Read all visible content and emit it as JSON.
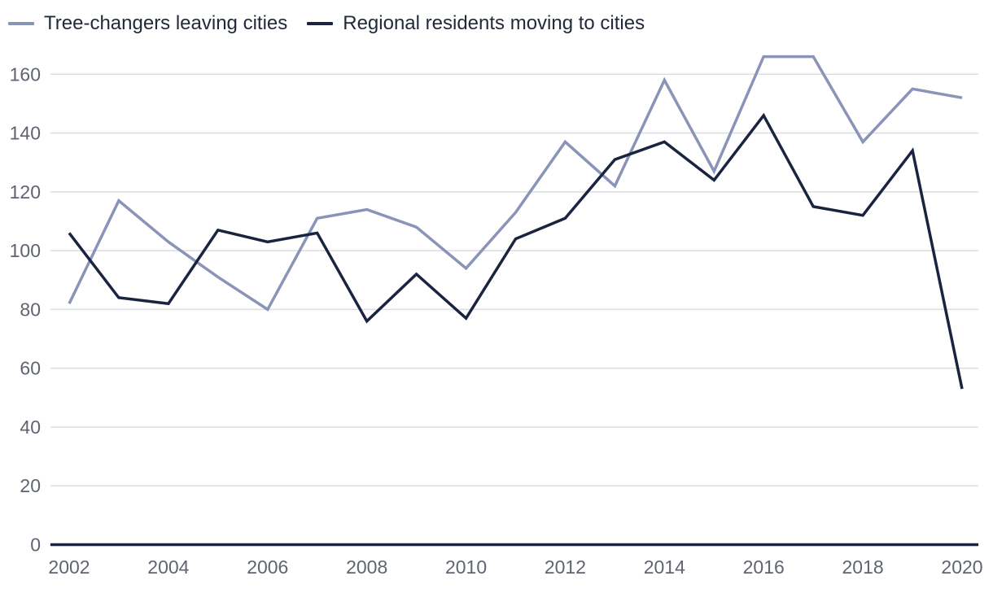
{
  "chart_data": {
    "type": "line",
    "title": "",
    "xlabel": "",
    "ylabel": "",
    "x": [
      2002,
      2003,
      2004,
      2005,
      2006,
      2007,
      2008,
      2009,
      2010,
      2011,
      2012,
      2013,
      2014,
      2015,
      2016,
      2017,
      2018,
      2019,
      2020
    ],
    "xticks": [
      "2002",
      "2004",
      "2006",
      "2008",
      "2010",
      "2012",
      "2014",
      "2016",
      "2018",
      "2020"
    ],
    "yticks": [
      "0",
      "20",
      "40",
      "60",
      "80",
      "100",
      "120",
      "140",
      "160"
    ],
    "ylim": [
      0,
      170
    ],
    "grid": true,
    "legend_position": "top-left",
    "series": [
      {
        "name": "Tree-changers leaving cities",
        "color": "#8a93b8",
        "values": [
          82,
          117,
          103,
          91,
          80,
          111,
          114,
          108,
          94,
          113,
          137,
          122,
          158,
          127,
          166,
          166,
          137,
          155,
          152
        ]
      },
      {
        "name": "Regional residents moving to cities",
        "color": "#1a2340",
        "values": [
          106,
          84,
          82,
          107,
          103,
          106,
          76,
          92,
          77,
          104,
          111,
          131,
          137,
          124,
          146,
          115,
          112,
          134,
          53
        ]
      }
    ]
  }
}
